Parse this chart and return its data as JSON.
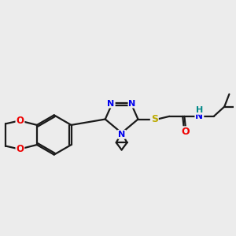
{
  "background_color": "#ececec",
  "bond_color": "#1a1a1a",
  "atom_colors": {
    "N": "#0000ee",
    "O": "#ee0000",
    "S": "#bbaa00",
    "H": "#008888"
  },
  "lw": 1.6,
  "fs": 8.5
}
